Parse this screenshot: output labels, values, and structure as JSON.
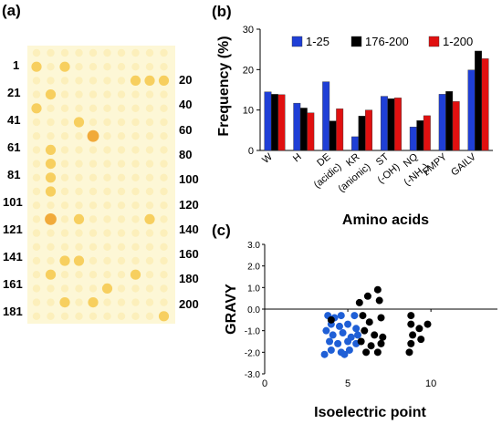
{
  "panels": {
    "a": "(a)",
    "b": "(b)",
    "c": "(c)"
  },
  "plate": {
    "left_labels": [
      "1",
      "21",
      "41",
      "61",
      "81",
      "101",
      "121",
      "141",
      "161",
      "181"
    ],
    "right_labels": [
      "20",
      "40",
      "60",
      "80",
      "100",
      "120",
      "140",
      "160",
      "180",
      "200"
    ],
    "background_color": "#fdf7d6",
    "spot_color": "#fbe9a6",
    "strong_spot_color": "#f6c84a",
    "peak_spot_color": "#f0a531"
  },
  "chart_data": [
    {
      "type": "bar",
      "title": "",
      "xlabel": "Amino acids",
      "ylabel": "Frequency (%)",
      "ylim": [
        0,
        30
      ],
      "yticks": [
        0,
        10,
        20,
        30
      ],
      "grid": false,
      "legend": "top",
      "categories": [
        "W",
        "H",
        "DE\n(acidic)",
        "KR\n(anionic)",
        "ST\n(-OH)",
        "NQ\n(-NH2)",
        "FMPY",
        "GAILV"
      ],
      "series": [
        {
          "name": "1-25",
          "color": "#1f3fd6",
          "values": [
            14.5,
            11.7,
            17.0,
            3.4,
            13.4,
            5.8,
            13.9,
            19.9
          ]
        },
        {
          "name": "176-200",
          "color": "#000000",
          "values": [
            13.9,
            10.5,
            7.3,
            8.5,
            12.8,
            7.4,
            14.6,
            24.6
          ]
        },
        {
          "name": "1-200",
          "color": "#e01010",
          "values": [
            13.8,
            9.3,
            10.3,
            10.0,
            13.0,
            8.6,
            12.1,
            22.7
          ]
        }
      ]
    },
    {
      "type": "scatter",
      "title": "",
      "xlabel": "Isoelectric point",
      "ylabel": "GRAVY",
      "xlim": [
        0,
        14
      ],
      "ylim": [
        -3.0,
        3.0
      ],
      "xticks": [
        0,
        5,
        10
      ],
      "yticks": [
        -3.0,
        -2.0,
        -1.0,
        0.0,
        1.0,
        2.0,
        3.0
      ],
      "grid": false,
      "series": [
        {
          "name": "",
          "color": "#1f5fd6",
          "points": [
            [
              3.8,
              -0.3
            ],
            [
              4.2,
              -0.4
            ],
            [
              4.6,
              -0.3
            ],
            [
              5.4,
              -0.3
            ],
            [
              4.0,
              -0.7
            ],
            [
              4.5,
              -0.8
            ],
            [
              5.0,
              -0.7
            ],
            [
              5.5,
              -0.9
            ],
            [
              3.7,
              -1.0
            ],
            [
              4.1,
              -1.2
            ],
            [
              4.7,
              -1.1
            ],
            [
              5.2,
              -1.3
            ],
            [
              3.9,
              -1.5
            ],
            [
              4.4,
              -1.6
            ],
            [
              5.0,
              -1.5
            ],
            [
              5.5,
              -1.6
            ],
            [
              4.0,
              -1.9
            ],
            [
              4.6,
              -2.0
            ],
            [
              5.1,
              -1.9
            ],
            [
              3.6,
              -2.1
            ],
            [
              4.8,
              -2.1
            ],
            [
              5.6,
              -1.2
            ]
          ]
        },
        {
          "name": "",
          "color": "#000000",
          "points": [
            [
              5.7,
              0.3
            ],
            [
              6.2,
              0.6
            ],
            [
              6.8,
              0.9
            ],
            [
              6.9,
              0.4
            ],
            [
              4.0,
              -0.5
            ],
            [
              5.9,
              -0.3
            ],
            [
              6.3,
              -0.6
            ],
            [
              7.0,
              -0.4
            ],
            [
              6.0,
              -1.0
            ],
            [
              6.6,
              -1.2
            ],
            [
              7.1,
              -1.3
            ],
            [
              5.8,
              -1.5
            ],
            [
              6.4,
              -1.7
            ],
            [
              7.0,
              -1.6
            ],
            [
              6.1,
              -2.0
            ],
            [
              6.8,
              -2.0
            ],
            [
              8.8,
              -0.3
            ],
            [
              8.8,
              -0.7
            ],
            [
              9.3,
              -0.9
            ],
            [
              8.9,
              -1.2
            ],
            [
              9.4,
              -1.4
            ],
            [
              8.8,
              -1.6
            ],
            [
              9.8,
              -0.7
            ],
            [
              8.7,
              -2.0
            ]
          ]
        }
      ]
    }
  ]
}
